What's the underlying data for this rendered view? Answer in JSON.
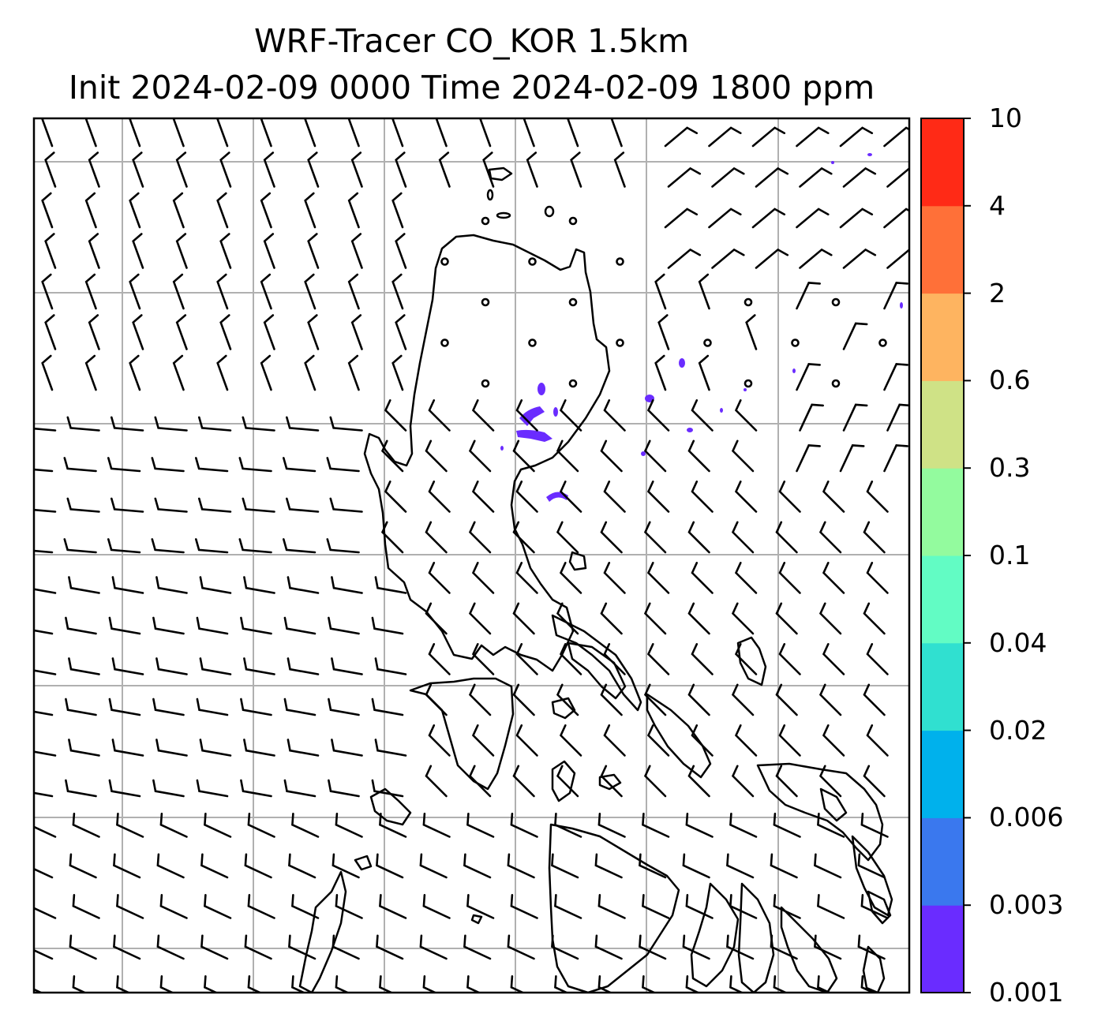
{
  "title": {
    "line1": "WRF-Tracer CO_KOR 1.5km",
    "line2": "Init 2024-02-09 0000 Time 2024-02-09 1800 ppm"
  },
  "colorbar": {
    "levels": [
      "0.001",
      "0.003",
      "0.006",
      "0.02",
      "0.04",
      "0.1",
      "0.3",
      "0.6",
      "2",
      "4",
      "10"
    ],
    "colors": [
      "#6a2cff",
      "#3a78ee",
      "#00b1ec",
      "#30e0d0",
      "#62fcc4",
      "#93fb9e",
      "#cfe286",
      "#feb460",
      "#ff7038",
      "#ff2a16"
    ]
  },
  "map": {
    "concentration_color": "#6a2cff",
    "grid_color": "#b0b0b0",
    "coastline_color": "#000000"
  }
}
